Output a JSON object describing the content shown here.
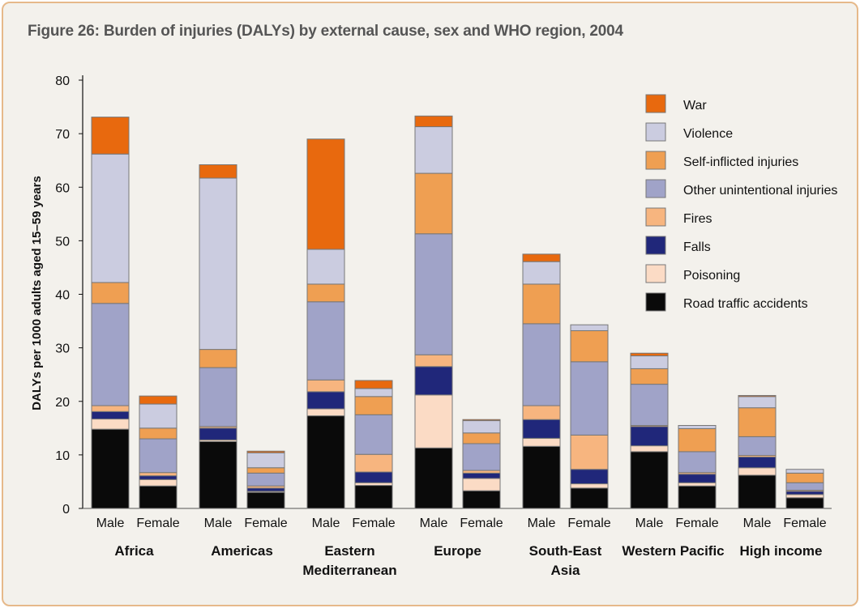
{
  "figure_title": "Figure 26: Burden of injuries (DALYs) by external cause, sex and WHO region, 2004",
  "colors": {
    "background": "#f3f1ec",
    "border": "#e6b98a",
    "War": "#e8690e",
    "Violence": "#cbcce0",
    "Self-inflicted injuries": "#ef9f52",
    "Other unintentional injuries": "#a0a3c8",
    "Fires": "#f7b57f",
    "Falls": "#20277a",
    "Poisoning": "#fbdbc5",
    "Road traffic accidents": "#0a0a0a"
  },
  "chart_data": {
    "type": "bar",
    "stacked": true,
    "title": "Figure 26: Burden of injuries (DALYs) by external cause, sex and WHO region, 2004",
    "ylabel": "DALYs per 1000 adults aged 15–59 years",
    "xlabel": "",
    "ylim": [
      0,
      80
    ],
    "yticks": [
      0,
      10,
      20,
      30,
      40,
      50,
      60,
      70,
      80
    ],
    "grid": false,
    "legend_position": "top-right",
    "groups": [
      "Africa",
      "Americas",
      "Eastern Mediterranean",
      "Europe",
      "South-East Asia",
      "Western Pacific",
      "High income"
    ],
    "categories": [
      "Male",
      "Female",
      "Male",
      "Female",
      "Male",
      "Female",
      "Male",
      "Female",
      "Male",
      "Female",
      "Male",
      "Female",
      "Male",
      "Female"
    ],
    "series": [
      {
        "name": "Road traffic accidents",
        "values": [
          14.8,
          4.2,
          12.5,
          3.0,
          17.3,
          4.3,
          11.3,
          3.3,
          11.6,
          3.8,
          10.6,
          4.2,
          6.2,
          2.0
        ]
      },
      {
        "name": "Poisoning",
        "values": [
          1.9,
          1.2,
          0.3,
          0.2,
          1.3,
          0.5,
          9.9,
          2.3,
          1.5,
          0.8,
          1.1,
          0.6,
          1.4,
          0.6
        ]
      },
      {
        "name": "Falls",
        "values": [
          1.4,
          0.7,
          2.2,
          0.6,
          3.2,
          2.0,
          5.3,
          1.0,
          3.5,
          2.7,
          3.6,
          1.6,
          2.0,
          0.6
        ]
      },
      {
        "name": "Fires",
        "values": [
          1.1,
          0.6,
          0.3,
          0.4,
          2.2,
          3.3,
          2.2,
          0.5,
          2.6,
          6.4,
          0.2,
          0.3,
          0.3,
          0.2
        ]
      },
      {
        "name": "Other unintentional injuries",
        "values": [
          19.1,
          6.3,
          11.0,
          2.4,
          14.6,
          7.4,
          22.6,
          5.0,
          15.3,
          13.7,
          7.7,
          3.9,
          3.5,
          1.4
        ]
      },
      {
        "name": "Self-inflicted injuries",
        "values": [
          3.9,
          2.0,
          3.4,
          1.0,
          3.3,
          3.4,
          11.3,
          2.0,
          7.4,
          5.8,
          2.9,
          4.3,
          5.4,
          1.8
        ]
      },
      {
        "name": "Violence",
        "values": [
          24.0,
          4.5,
          32.0,
          2.8,
          6.5,
          1.5,
          8.7,
          2.3,
          4.2,
          1.1,
          2.4,
          0.6,
          2.1,
          0.7
        ]
      },
      {
        "name": "War",
        "values": [
          6.9,
          1.5,
          2.5,
          0.3,
          20.6,
          1.5,
          2.0,
          0.2,
          1.4,
          0.0,
          0.5,
          0.0,
          0.2,
          0.0
        ]
      }
    ],
    "legend_order": [
      "War",
      "Violence",
      "Self-inflicted injuries",
      "Other unintentional injuries",
      "Fires",
      "Falls",
      "Poisoning",
      "Road traffic accidents"
    ]
  }
}
